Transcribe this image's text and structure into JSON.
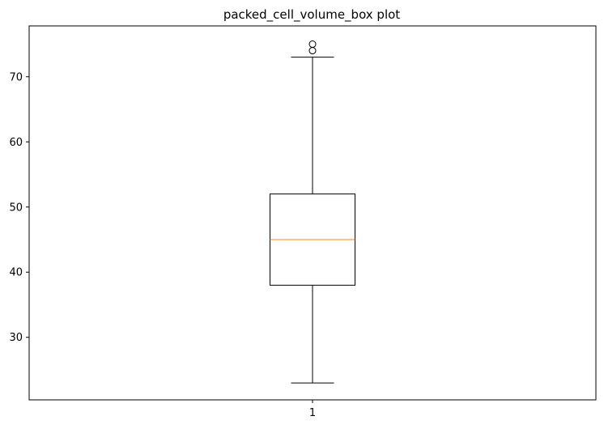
{
  "chart_data": {
    "type": "box",
    "title": "packed_cell_volume_box plot",
    "xlabel": "",
    "ylabel": "",
    "categories": [
      "1"
    ],
    "ylim": [
      20.4,
      77.8
    ],
    "yticks": [
      30,
      40,
      50,
      60,
      70
    ],
    "grid": false,
    "boxes": [
      {
        "category": "1",
        "whisker_low": 23,
        "q1": 38,
        "median": 45,
        "q3": 52,
        "whisker_high": 73,
        "outliers": [
          74,
          75
        ]
      }
    ],
    "colors": {
      "box": "#000000",
      "median": "#ff7f0e",
      "whisker": "#000000",
      "outlier": "#000000"
    }
  }
}
